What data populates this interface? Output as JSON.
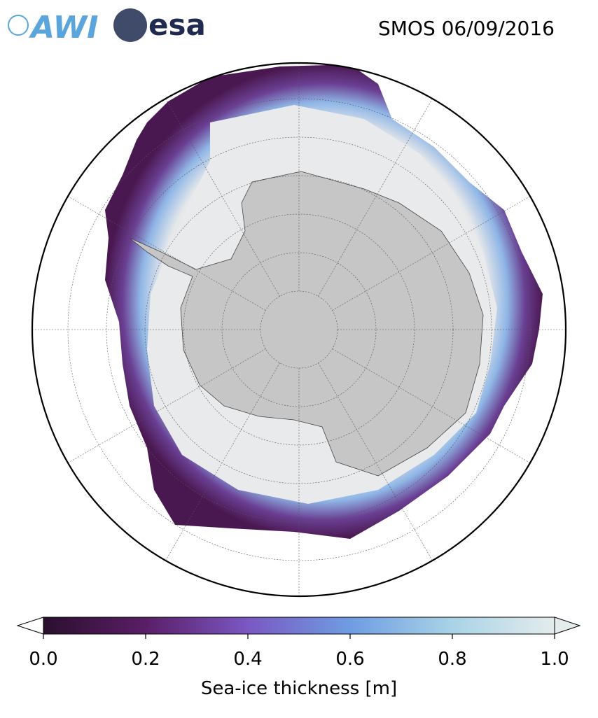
{
  "header": {
    "logos": [
      "AWI",
      "esa"
    ],
    "title": "SMOS 06/09/2016"
  },
  "colorbar": {
    "label": "Sea-ice thickness [m]",
    "range": [
      0,
      1
    ],
    "ticks": [
      {
        "value": 0,
        "label": "0.0"
      },
      0.2,
      0.4,
      0.6,
      0.8,
      {
        "value": 1,
        "label": "1.0"
      }
    ],
    "colors": [
      "#2b0f2e",
      "#5a1e66",
      "#7a58c2",
      "#6e9de2",
      "#a9d3e6",
      "#e4ecec"
    ]
  }
}
